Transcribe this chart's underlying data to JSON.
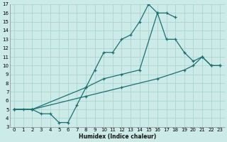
{
  "xlabel": "Humidex (Indice chaleur)",
  "bg_color": "#cceae8",
  "grid_color": "#aad4d2",
  "line_color": "#1a7070",
  "xlim": [
    -0.5,
    23.5
  ],
  "ylim": [
    3,
    17
  ],
  "xticks": [
    0,
    1,
    2,
    3,
    4,
    5,
    6,
    7,
    8,
    9,
    10,
    11,
    12,
    13,
    14,
    15,
    16,
    17,
    18,
    19,
    20,
    21,
    22,
    23
  ],
  "yticks": [
    3,
    4,
    5,
    6,
    7,
    8,
    9,
    10,
    11,
    12,
    13,
    14,
    15,
    16,
    17
  ],
  "line1_x": [
    0,
    1,
    2,
    3,
    4,
    5,
    6,
    7,
    8,
    9,
    10,
    11,
    12,
    13,
    14,
    15,
    16,
    17,
    18
  ],
  "line1_y": [
    5,
    5,
    5,
    4.5,
    4.5,
    3.5,
    3.5,
    5.5,
    7.5,
    9.5,
    11.5,
    11.5,
    13,
    13.5,
    15,
    17,
    16,
    16,
    15.5
  ],
  "line2_x": [
    0,
    2,
    8,
    10,
    12,
    14,
    16,
    17,
    18,
    19,
    20,
    21,
    22,
    23
  ],
  "line2_y": [
    5,
    5,
    7.5,
    8.5,
    9,
    9.5,
    16,
    13,
    13,
    11.5,
    10.5,
    11,
    10,
    10
  ],
  "line3_x": [
    0,
    2,
    8,
    12,
    16,
    19,
    20,
    21,
    22,
    23
  ],
  "line3_y": [
    5,
    5,
    6.5,
    7.5,
    8.5,
    9.5,
    10,
    11,
    10,
    10
  ]
}
